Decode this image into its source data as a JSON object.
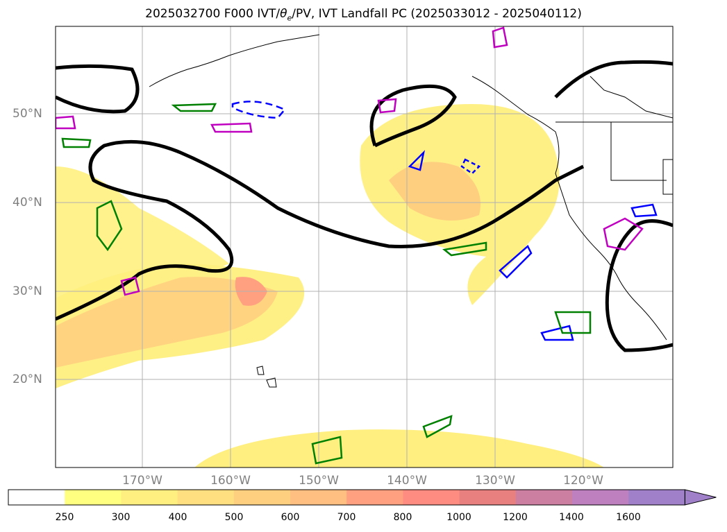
{
  "title": {
    "main": "2025032700 F000 IVT/",
    "theta_symbol": "θ",
    "theta_sub": "e",
    "rest": "/PV, IVT Landfall PC (2025033012 - 2025040112)"
  },
  "axes": {
    "lat_labels": [
      "50°N",
      "40°N",
      "30°N",
      "20°N"
    ],
    "lon_labels": [
      "170°W",
      "160°W",
      "150°W",
      "140°W",
      "130°W",
      "120°W"
    ]
  },
  "colorbar": {
    "levels": [
      "250",
      "300",
      "400",
      "500",
      "600",
      "700",
      "800",
      "1000",
      "1200",
      "1400",
      "1600"
    ],
    "colors": [
      "#ffffff",
      "#ffff80",
      "#ffef80",
      "#ffdf80",
      "#ffcf80",
      "#ffbf80",
      "#ffa080",
      "#ff8c80",
      "#e88080",
      "#cc7fa0",
      "#bf80c0",
      "#a080c8"
    ],
    "extend": "max"
  },
  "colors": {
    "grid": "#b0b0b0",
    "boundary": "#000000",
    "pv_positive": "#008000",
    "pv_blue": "#0000ff",
    "pv_magenta": "#c000c0",
    "label_gray": "#7f7f7f"
  }
}
